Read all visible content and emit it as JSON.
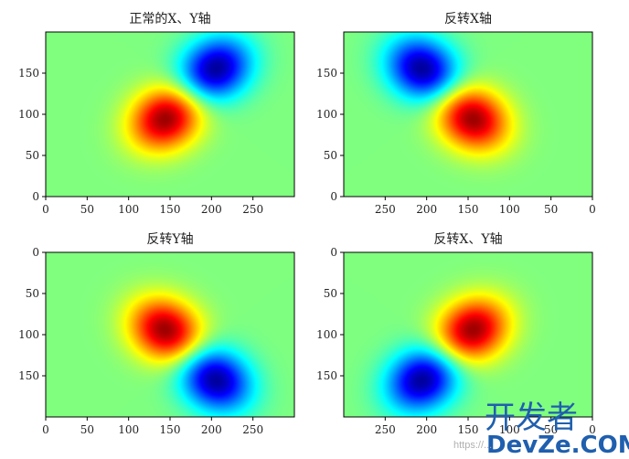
{
  "watermark": {
    "brand_cn": "开发者",
    "brand_en": "DevZe.COM",
    "url": "https://..."
  },
  "chart_data": [
    {
      "type": "heatmap",
      "title": "正常的X、Y轴",
      "colormap": "jet",
      "x_range": [
        0,
        300
      ],
      "y_range": [
        0,
        200
      ],
      "x_inverted": false,
      "y_inverted": false,
      "x_ticks": [
        0,
        50,
        100,
        150,
        200,
        250
      ],
      "y_ticks": [
        0,
        50,
        100,
        150
      ],
      "field": {
        "max_center": [
          145,
          95
        ],
        "min_center": [
          205,
          155
        ]
      }
    },
    {
      "type": "heatmap",
      "title": "反转X轴",
      "colormap": "jet",
      "x_range": [
        300,
        0
      ],
      "y_range": [
        0,
        200
      ],
      "x_inverted": true,
      "y_inverted": false,
      "x_ticks": [
        250,
        200,
        150,
        100,
        50,
        0
      ],
      "y_ticks": [
        0,
        50,
        100,
        150
      ],
      "field": {
        "max_center": [
          145,
          95
        ],
        "min_center": [
          205,
          155
        ]
      }
    },
    {
      "type": "heatmap",
      "title": "反转Y轴",
      "colormap": "jet",
      "x_range": [
        0,
        300
      ],
      "y_range": [
        200,
        0
      ],
      "x_inverted": false,
      "y_inverted": true,
      "x_ticks": [
        0,
        50,
        100,
        150,
        200,
        250
      ],
      "y_ticks": [
        0,
        50,
        100,
        150
      ],
      "field": {
        "max_center": [
          145,
          95
        ],
        "min_center": [
          205,
          155
        ]
      }
    },
    {
      "type": "heatmap",
      "title": "反转X、Y轴",
      "colormap": "jet",
      "x_range": [
        300,
        0
      ],
      "y_range": [
        200,
        0
      ],
      "x_inverted": true,
      "y_inverted": true,
      "x_ticks": [
        250,
        200,
        150,
        100,
        50,
        0
      ],
      "y_ticks": [
        0,
        50,
        100,
        150
      ],
      "field": {
        "max_center": [
          145,
          95
        ],
        "min_center": [
          205,
          155
        ]
      }
    }
  ]
}
